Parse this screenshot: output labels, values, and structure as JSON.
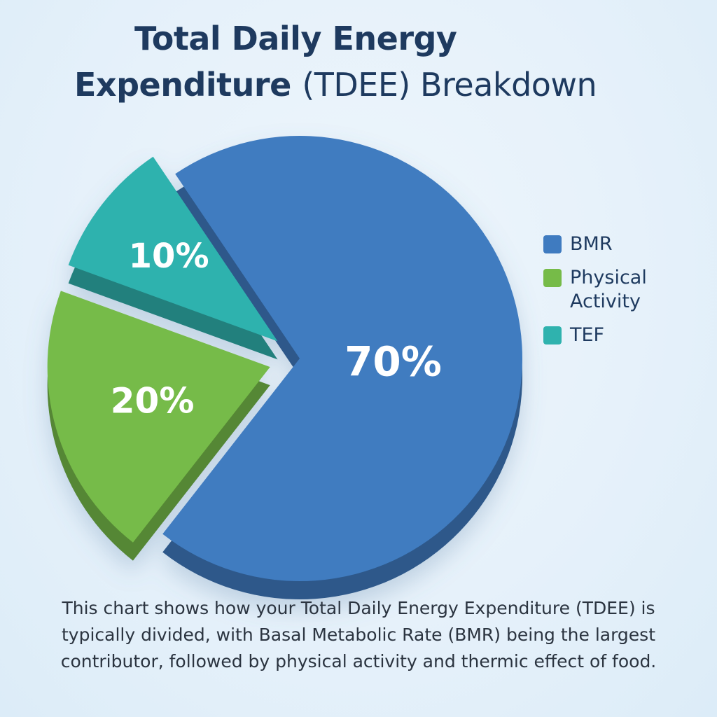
{
  "title": {
    "line1": "Total Daily Energy",
    "line2_bold": "Expenditure",
    "line2_regular": "(TDEE) Breakdown"
  },
  "chart_data": {
    "type": "pie",
    "title": "Total Daily Energy Expenditure (TDEE) Breakdown",
    "slices": [
      {
        "name": "BMR",
        "value": 70,
        "label": "70%",
        "color": "#3f7bc0"
      },
      {
        "name": "Physical Activity",
        "value": 20,
        "label": "20%",
        "color": "#76bb48"
      },
      {
        "name": "TEF",
        "value": 10,
        "label": "10%",
        "color": "#2fb2ae"
      }
    ],
    "legend": {
      "placement": "right",
      "items": [
        {
          "label": "BMR",
          "color": "#3f7bc0"
        },
        {
          "label": "Physical Activity",
          "color": "#76bb48"
        },
        {
          "label": "TEF",
          "color": "#2fb2ae"
        }
      ]
    }
  },
  "caption": "This chart shows how your Total Daily Energy Expenditure (TDEE) is typically divided, with Basal Metabolic Rate (BMR) being the largest contributor, followed by physical activity and thermic effect of food."
}
